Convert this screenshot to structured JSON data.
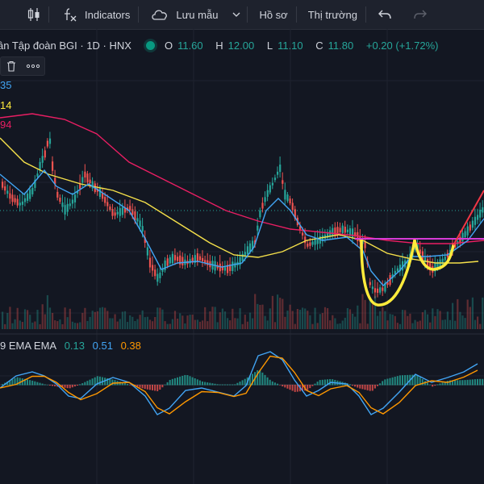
{
  "toolbar": {
    "indicators_label": "Indicators",
    "save_label": "Lưu mẫu",
    "profile_label": "Hồ sơ",
    "market_label": "Thị trường"
  },
  "legend": {
    "title": "ân Tập đoàn BGI · 1D · HNX",
    "o_key": "O",
    "o_val": "11.60",
    "h_key": "H",
    "h_val": "12.00",
    "l_key": "L",
    "l_val": "11.10",
    "c_key": "C",
    "c_val": "11.80",
    "change": "+0.20 (+1.72%)"
  },
  "ma_labels": [
    {
      "text": "35",
      "color": "#42a5f5"
    },
    {
      "text": "14",
      "color": "#ffeb3b"
    },
    {
      "text": "94",
      "color": "#e91e63"
    }
  ],
  "indicator": {
    "prefix": "9 EMA EMA",
    "v1": "0.13",
    "v1_color": "#26a69a",
    "v2": "0.51",
    "v2_color": "#42a5f5",
    "v3": "0.38",
    "v3_color": "#ff9800"
  },
  "colors": {
    "bg": "#131722",
    "up": "#26a69a",
    "down": "#ef5350",
    "ema_fast": "#42a5f5",
    "ema_mid": "#f5e04a",
    "ema_slow": "#e91e63",
    "signal": "#ff9800",
    "drawing_yellow": "#ffeb3b",
    "drawing_magenta": "#d63bd6",
    "drawing_red": "#f23645"
  },
  "icons": [
    "candles-icon",
    "fx-icon",
    "cloud-icon",
    "chevron-down-icon",
    "undo-icon",
    "redo-icon",
    "trash-icon",
    "more-icon",
    "live-dot-icon"
  ]
}
